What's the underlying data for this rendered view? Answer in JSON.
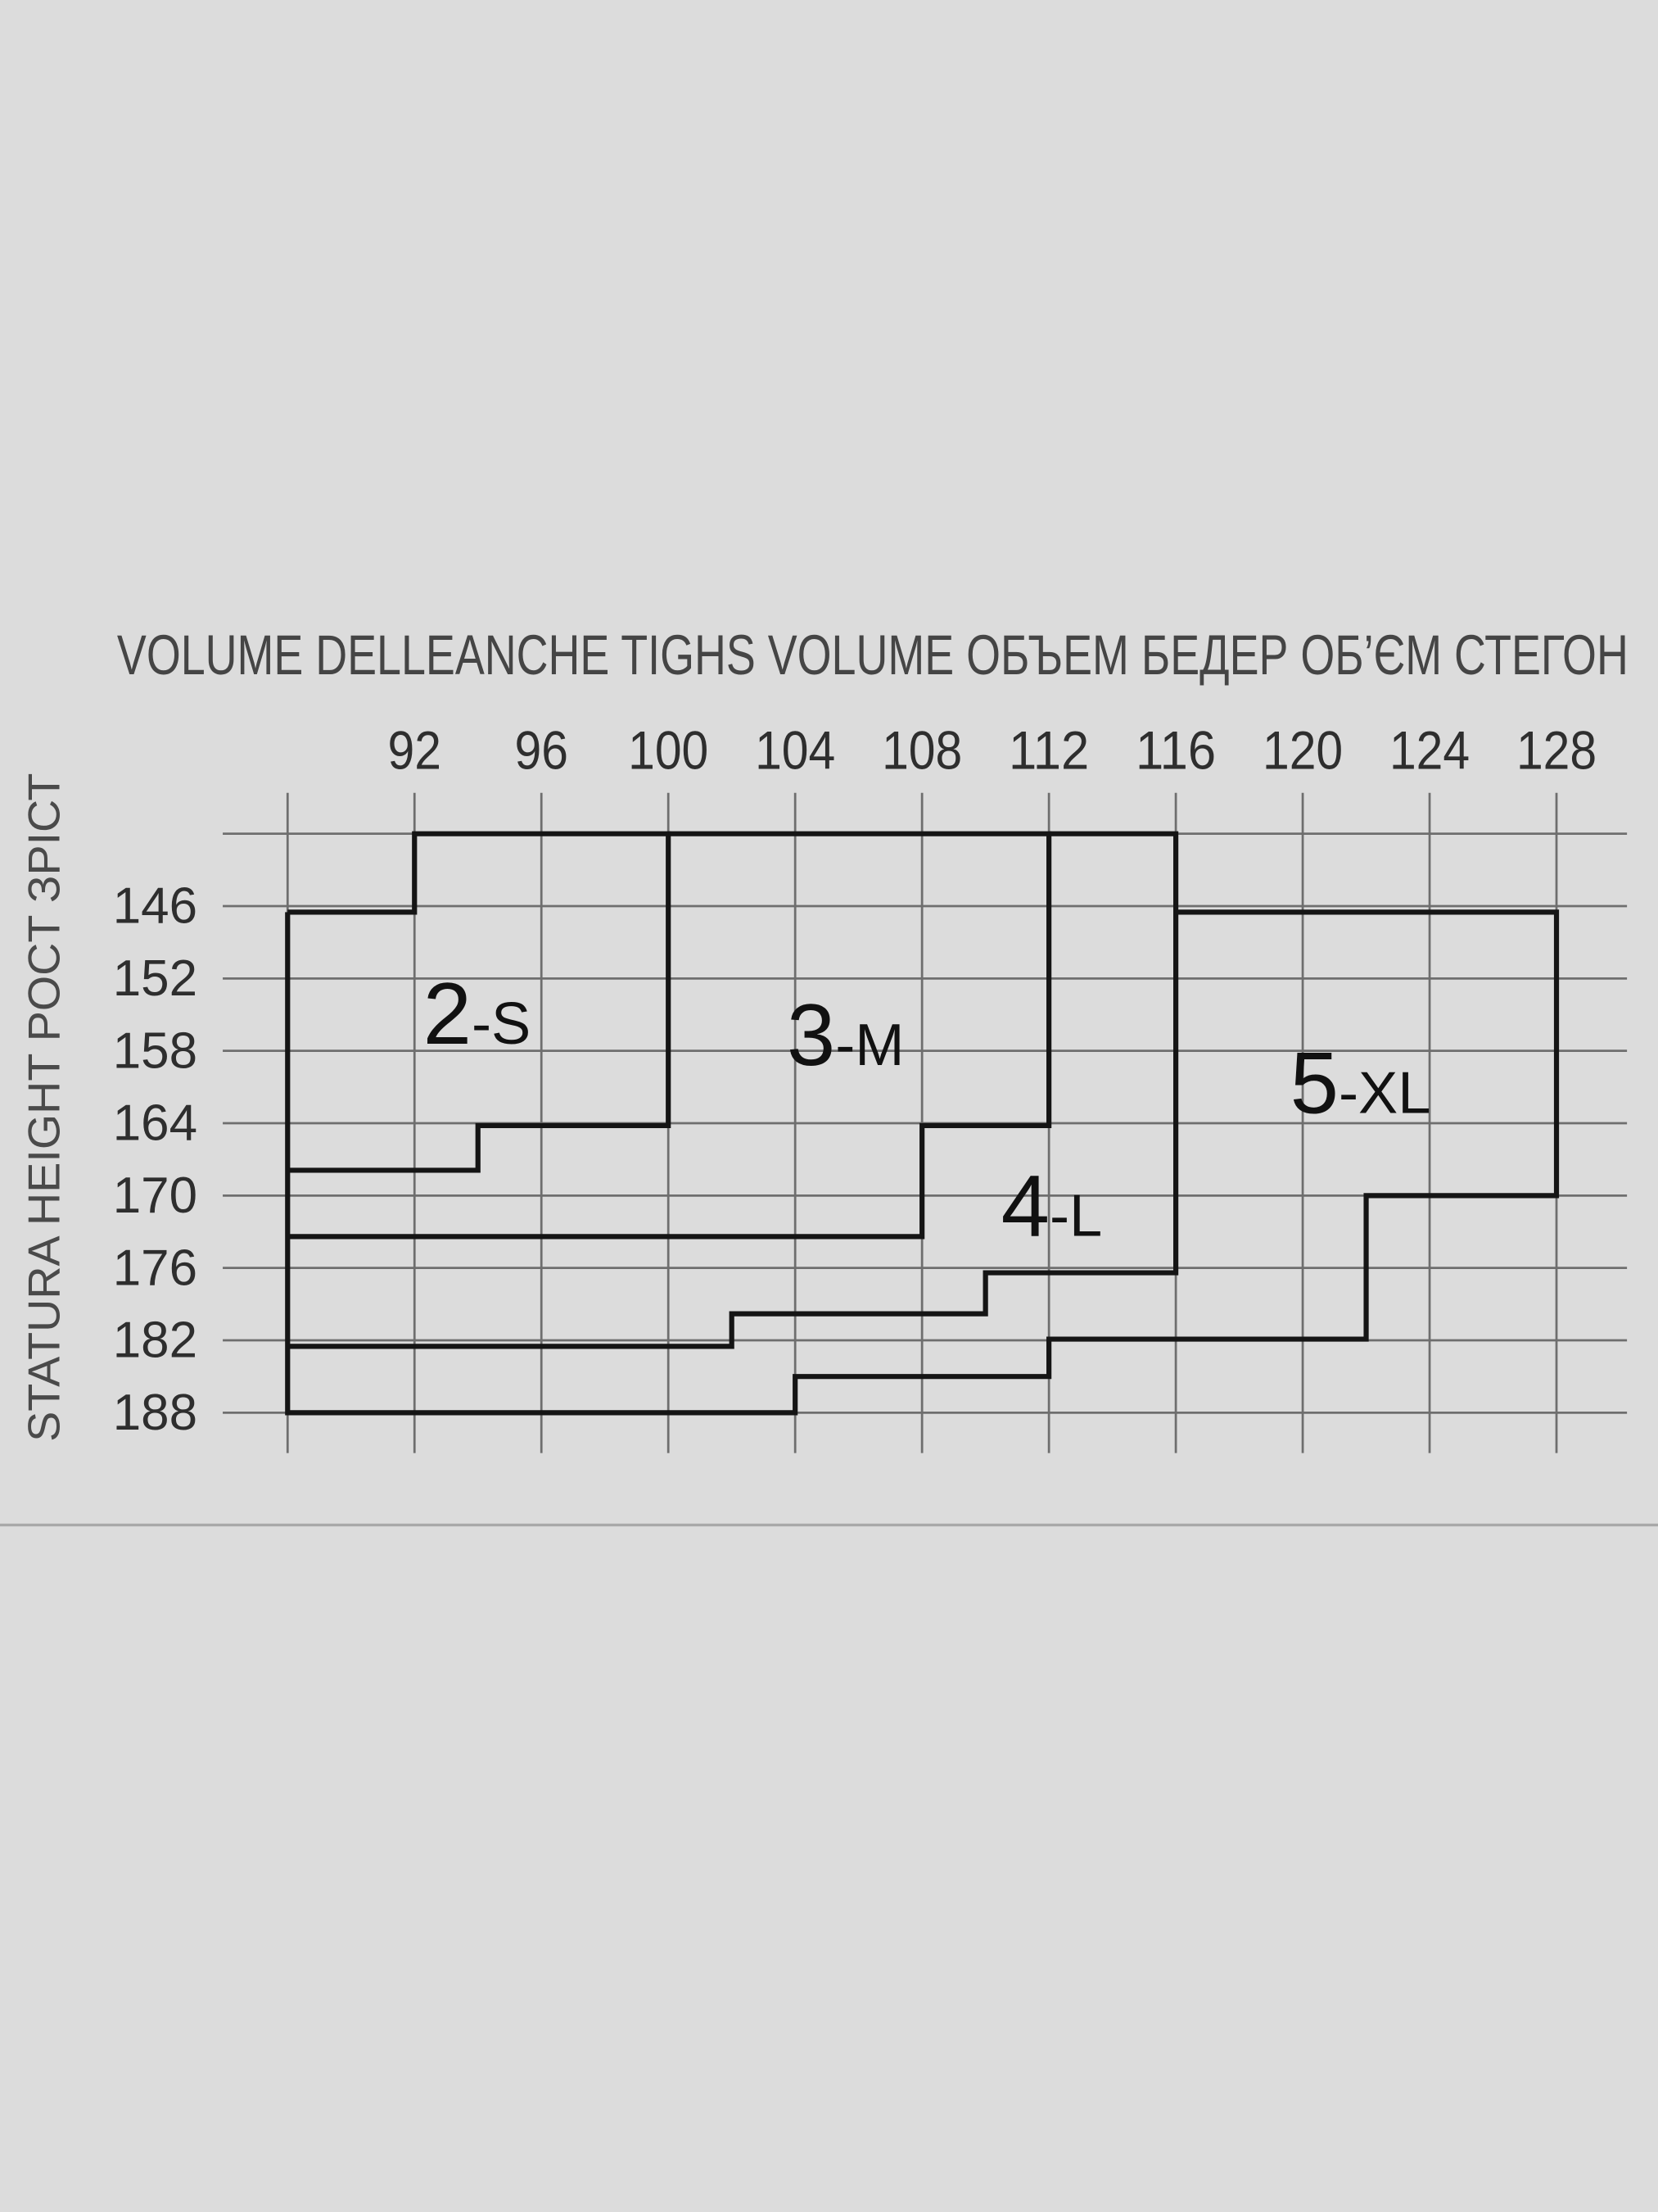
{
  "chart_data": {
    "type": "size-chart",
    "title": "VOLUME DELLEANCHE  TIGHS VOLUME  ОБЪЕМ БЕДЕР  ОБ’ЄМ СТЕГОН",
    "ylabel": "STATURA  HEIGHT  POCT  ЗРІСТ",
    "x_ticks": [
      "92",
      "96",
      "100",
      "104",
      "108",
      "112",
      "116",
      "120",
      "124",
      "128"
    ],
    "y_ticks": [
      "146",
      "152",
      "158",
      "164",
      "170",
      "176",
      "182",
      "188"
    ],
    "xlim": [
      88,
      128
    ],
    "ylim": [
      140,
      188
    ],
    "grid": true,
    "colors": {
      "background": "#dcdcdc",
      "grid": "#6e6e6e",
      "boundary": "#151515"
    },
    "sizes": [
      {
        "num": "2",
        "suffix": "-S",
        "boundary": [
          [
            88,
            146.5
          ],
          [
            92,
            146.5
          ],
          [
            92,
            140
          ],
          [
            100,
            140
          ],
          [
            100,
            164.2
          ],
          [
            94,
            164.2
          ],
          [
            94,
            167.9
          ],
          [
            88,
            167.9
          ]
        ]
      },
      {
        "num": "3",
        "suffix": "-M",
        "boundary": [
          [
            100,
            140
          ],
          [
            112,
            140
          ],
          [
            112,
            164.2
          ],
          [
            108,
            164.2
          ],
          [
            108,
            173.4
          ],
          [
            88,
            173.4
          ]
        ]
      },
      {
        "num": "4",
        "suffix": "-L",
        "boundary": [
          [
            112,
            140
          ],
          [
            116,
            140
          ],
          [
            116,
            176.4
          ],
          [
            110,
            176.4
          ],
          [
            110,
            179.8
          ],
          [
            102,
            179.8
          ],
          [
            102,
            182.5
          ],
          [
            88,
            182.5
          ]
        ]
      },
      {
        "num": "5",
        "suffix": "-XL",
        "boundary": [
          [
            116,
            146.5
          ],
          [
            128,
            146.5
          ],
          [
            128,
            170
          ],
          [
            122,
            170
          ],
          [
            122,
            181.9
          ],
          [
            112,
            181.9
          ],
          [
            112,
            185
          ],
          [
            104,
            185
          ],
          [
            104,
            188
          ],
          [
            88,
            188
          ],
          [
            88,
            146.5
          ]
        ]
      }
    ]
  }
}
